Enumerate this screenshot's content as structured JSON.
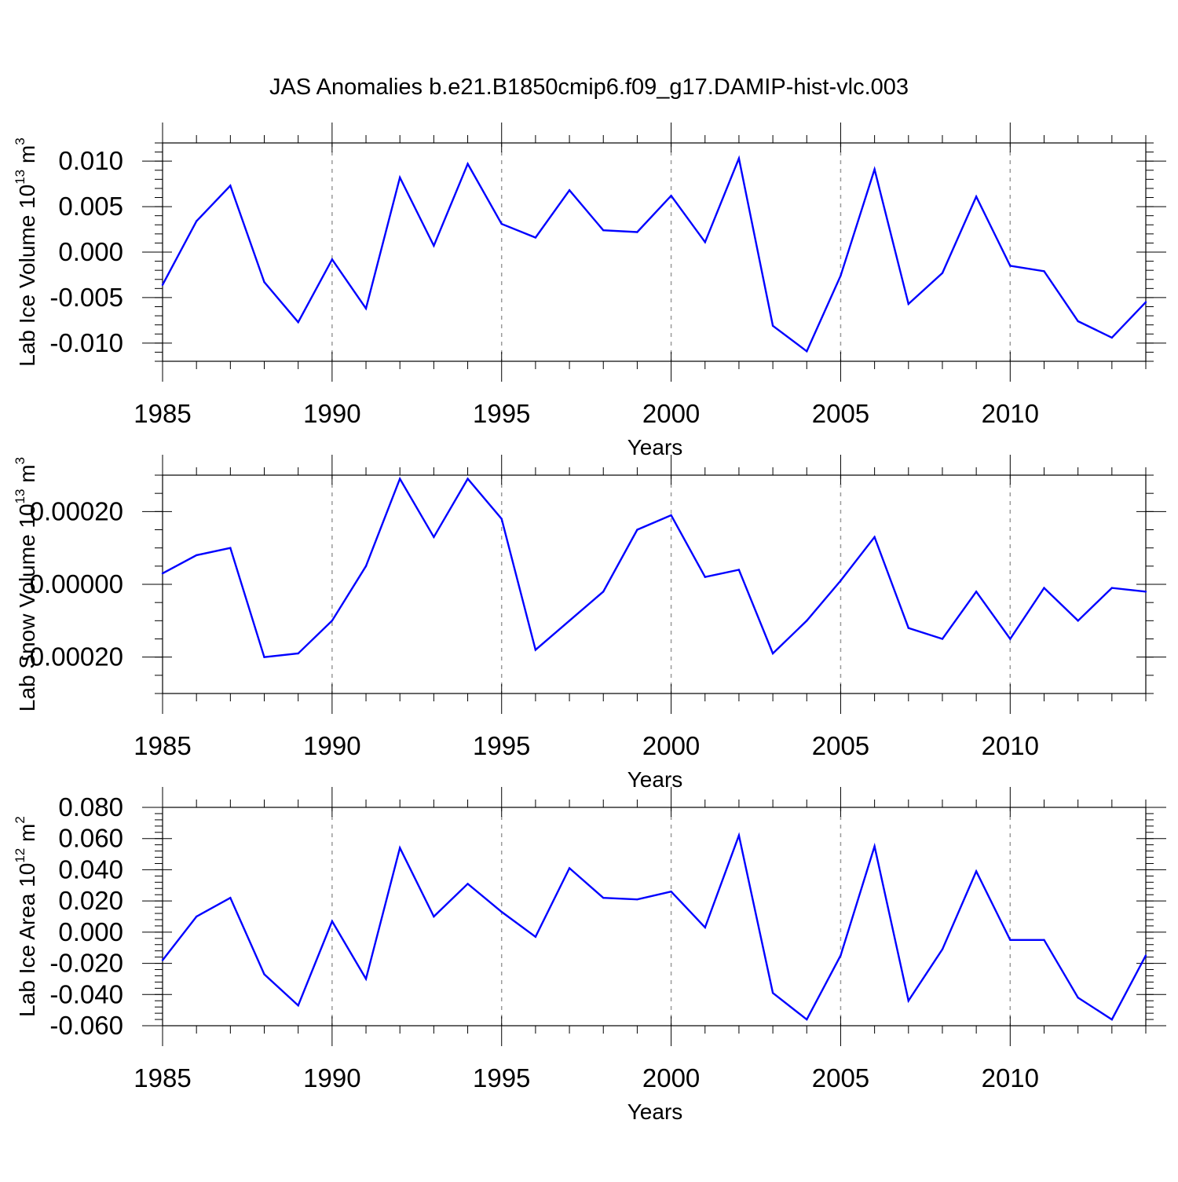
{
  "title": "JAS Anomalies b.e21.B1850cmip6.f09_g17.DAMIP-hist-vlc.003",
  "colors": {
    "line": "#0000ff",
    "axis": "#000000",
    "grid": "#9a9a9a"
  },
  "chart_data": [
    {
      "type": "line",
      "title": "JAS Anomalies b.e21.B1850cmip6.f09_g17.DAMIP-hist-vlc.003",
      "xlabel": "Years",
      "ylabel": {
        "text": "Lab Ice Volume 10",
        "exp": "13",
        "unit": " m",
        "unit_exp": "3"
      },
      "xlim": [
        1985,
        2014
      ],
      "ylim": [
        -0.012,
        0.012
      ],
      "x_ticks": [
        1985,
        1990,
        1995,
        2000,
        2005,
        2010
      ],
      "y_ticks": [
        0.01,
        0.005,
        0.0,
        -0.005,
        -0.01
      ],
      "y_tick_labels": [
        "0.010",
        "0.005",
        "0.000",
        "-0.005",
        "-0.010"
      ],
      "y_minor_step": 0.001,
      "x": [
        1985,
        1986,
        1987,
        1988,
        1989,
        1990,
        1991,
        1992,
        1993,
        1994,
        1995,
        1996,
        1997,
        1998,
        1999,
        2000,
        2001,
        2002,
        2003,
        2004,
        2005,
        2006,
        2007,
        2008,
        2009,
        2010,
        2011,
        2012,
        2013,
        2014
      ],
      "series": [
        {
          "name": "Lab Ice Volume",
          "values": [
            -0.0036,
            0.0034,
            0.0073,
            -0.0033,
            -0.0077,
            -0.0008,
            -0.0062,
            0.0082,
            0.0007,
            0.0097,
            0.0031,
            0.0016,
            0.0068,
            0.0024,
            0.0022,
            0.0062,
            0.0011,
            0.0103,
            -0.0081,
            -0.0109,
            -0.0026,
            0.0091,
            -0.0057,
            -0.0023,
            0.0061,
            -0.0015,
            -0.0021,
            -0.0076,
            -0.0094,
            -0.0055
          ]
        }
      ]
    },
    {
      "type": "line",
      "xlabel": "Years",
      "ylabel": {
        "text": "Lab Snow Volume 10",
        "exp": "13",
        "unit": " m",
        "unit_exp": "3"
      },
      "xlim": [
        1985,
        2014
      ],
      "ylim": [
        -0.0003,
        0.0003
      ],
      "x_ticks": [
        1985,
        1990,
        1995,
        2000,
        2005,
        2010
      ],
      "y_ticks": [
        0.0002,
        0.0,
        -0.0002
      ],
      "y_tick_labels": [
        "0.00020",
        "0.00000",
        "-0.00020"
      ],
      "y_minor_step": 5e-05,
      "x": [
        1985,
        1986,
        1987,
        1988,
        1989,
        1990,
        1991,
        1992,
        1993,
        1994,
        1995,
        1996,
        1997,
        1998,
        1999,
        2000,
        2001,
        2002,
        2003,
        2004,
        2005,
        2006,
        2007,
        2008,
        2009,
        2010,
        2011,
        2012,
        2013,
        2014
      ],
      "series": [
        {
          "name": "Lab Snow Volume",
          "values": [
            3e-05,
            8e-05,
            0.0001,
            -0.0002,
            -0.00019,
            -0.0001,
            5e-05,
            0.00029,
            0.00013,
            0.00029,
            0.00018,
            -0.00018,
            -0.0001,
            -2e-05,
            0.00015,
            0.00019,
            2e-05,
            4e-05,
            -0.00019,
            -0.0001,
            1e-05,
            0.00013,
            -0.00012,
            -0.00015,
            -2e-05,
            -0.00015,
            -1e-05,
            -0.0001,
            -1e-05,
            -2e-05
          ]
        }
      ]
    },
    {
      "type": "line",
      "xlabel": "Years",
      "ylabel": {
        "text": "Lab Ice Area 10",
        "exp": "12",
        "unit": " m",
        "unit_exp": "2"
      },
      "xlim": [
        1985,
        2014
      ],
      "ylim": [
        -0.06,
        0.08
      ],
      "x_ticks": [
        1985,
        1990,
        1995,
        2000,
        2005,
        2010
      ],
      "y_ticks": [
        0.08,
        0.06,
        0.04,
        0.02,
        0.0,
        -0.02,
        -0.04,
        -0.06
      ],
      "y_tick_labels": [
        "0.080",
        "0.060",
        "0.040",
        "0.020",
        "0.000",
        "-0.020",
        "-0.040",
        "-0.060"
      ],
      "y_minor_step": 0.004,
      "x": [
        1985,
        1986,
        1987,
        1988,
        1989,
        1990,
        1991,
        1992,
        1993,
        1994,
        1995,
        1996,
        1997,
        1998,
        1999,
        2000,
        2001,
        2002,
        2003,
        2004,
        2005,
        2006,
        2007,
        2008,
        2009,
        2010,
        2011,
        2012,
        2013,
        2014
      ],
      "series": [
        {
          "name": "Lab Ice Area",
          "values": [
            -0.018,
            0.01,
            0.022,
            -0.027,
            -0.047,
            0.007,
            -0.03,
            0.054,
            0.01,
            0.031,
            0.013,
            -0.003,
            0.041,
            0.022,
            0.021,
            0.026,
            0.003,
            0.062,
            -0.039,
            -0.056,
            -0.015,
            0.055,
            -0.044,
            -0.011,
            0.039,
            -0.005,
            -0.005,
            -0.042,
            -0.056,
            -0.015
          ]
        }
      ]
    }
  ]
}
